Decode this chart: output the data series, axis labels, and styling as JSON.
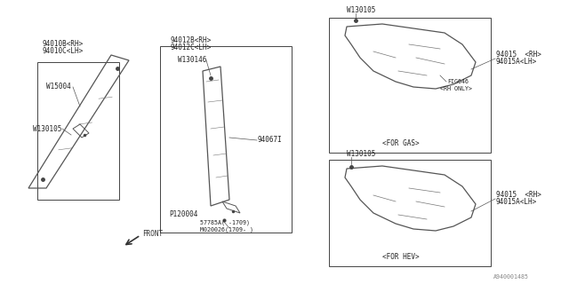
{
  "bg_color": "#ffffff",
  "fig_id": "A940001485",
  "lc": "#444444",
  "fs": 5.5,
  "sfs": 4.8,
  "labels": {
    "l1": "94010B<RH>",
    "l2": "94010C<LH>",
    "l3": "W15004",
    "l4": "W130105",
    "c1": "94012B<RH>",
    "c2": "94012C<LH>",
    "c3": "W130146",
    "c4": "94067I",
    "c5": "P120004",
    "c6": "57785A( -1709)",
    "c7": "M020026(1709- )",
    "tr1": "W130105",
    "tr2": "94015  <RH>",
    "tr3": "94015A<LH>",
    "tr4": "FIG646",
    "tr5": "<RH ONLY>",
    "tr6": "<FOR GAS>",
    "br1": "94015  <RH>",
    "br2": "94015A<LH>",
    "br3": "<FOR HEV>",
    "front": "FRONT"
  }
}
